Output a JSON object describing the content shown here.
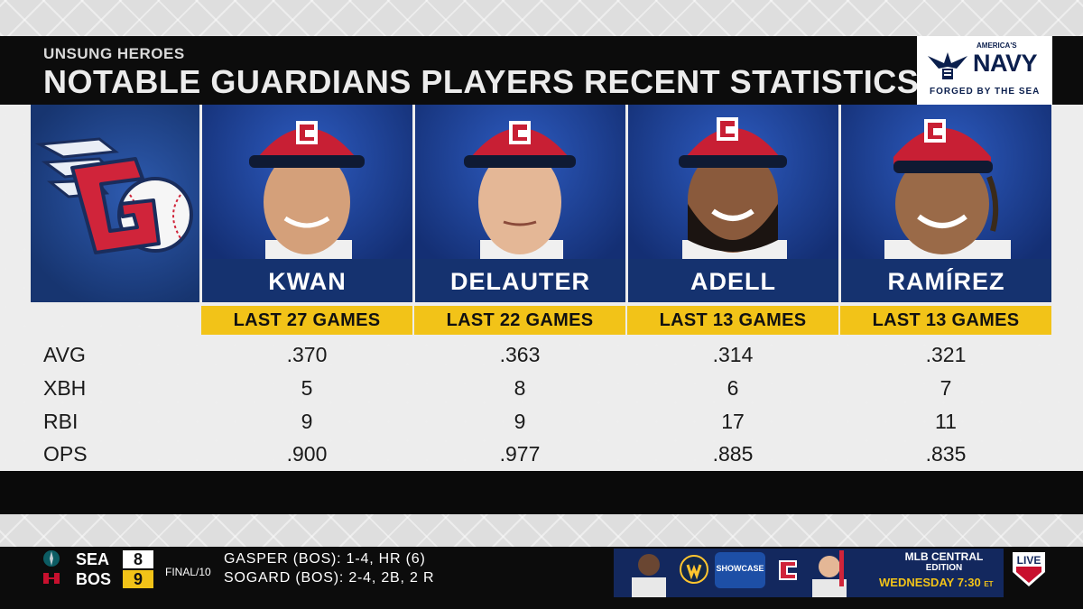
{
  "header": {
    "subtitle": "UNSUNG HEROES",
    "title": "NOTABLE GUARDIANS PLAYERS RECENT STATISTICS"
  },
  "sponsor": {
    "small": "AMERICA'S",
    "big": "NAVY",
    "tagline": "FORGED BY THE SEA"
  },
  "colors": {
    "nameplate": "#15326f",
    "games_bar": "#f2c318",
    "cap_red": "#d0243a",
    "header_bg": "#0c0c0c"
  },
  "players": [
    {
      "name": "KWAN",
      "games": "LAST 27 GAMES",
      "avg": ".370",
      "xbh": "5",
      "rbi": "9",
      "ops": ".900"
    },
    {
      "name": "DELAUTER",
      "games": "LAST 22 GAMES",
      "avg": ".363",
      "xbh": "8",
      "rbi": "9",
      "ops": ".977"
    },
    {
      "name": "ADELL",
      "games": "LAST 13 GAMES",
      "avg": ".314",
      "xbh": "6",
      "rbi": "17",
      "ops": ".885"
    },
    {
      "name": "RAMÍREZ",
      "games": "LAST 13 GAMES",
      "avg": ".321",
      "xbh": "7",
      "rbi": "11",
      "ops": ".835"
    }
  ],
  "stat_labels": [
    "AVG",
    "XBH",
    "RBI",
    "OPS"
  ],
  "ticker": {
    "away_team": "SEA",
    "away_score": "8",
    "home_team": "BOS",
    "home_score": "9",
    "status": "FINAL/10",
    "line1": "GASPER (BOS): 1-4, HR (6)",
    "line2": "SOGARD (BOS): 2-4, 2B, 2 R"
  },
  "promo": {
    "showcase": "SHOWCASE",
    "brand_line": "MLB CENTRAL",
    "edition": "EDITION",
    "schedule": "WEDNESDAY 7:30",
    "tz": "ET",
    "live": "LIVE"
  }
}
